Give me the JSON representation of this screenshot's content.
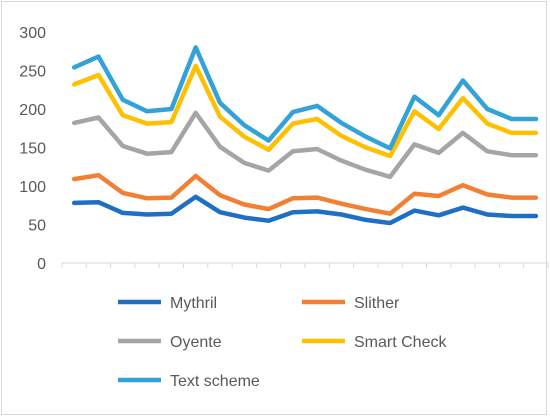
{
  "chart_data": {
    "type": "line",
    "title": "",
    "xlabel": "",
    "ylabel": "",
    "ylim": [
      0,
      300
    ],
    "yticks": [
      0,
      50,
      100,
      150,
      200,
      250,
      300
    ],
    "grid": false,
    "legend_position": "bottom",
    "x": [
      1,
      2,
      3,
      4,
      5,
      6,
      7,
      8,
      9,
      10,
      11,
      12,
      13,
      14,
      15,
      16,
      17,
      18,
      19,
      20
    ],
    "series": [
      {
        "name": "Mythril",
        "color": "#1f6fc5",
        "values": [
          78,
          79,
          65,
          63,
          64,
          86,
          66,
          59,
          55,
          66,
          67,
          63,
          56,
          52,
          68,
          62,
          72,
          63,
          61,
          61
        ]
      },
      {
        "name": "Slither",
        "color": "#f28034",
        "values": [
          109,
          114,
          91,
          84,
          85,
          113,
          88,
          76,
          70,
          84,
          85,
          77,
          70,
          64,
          90,
          87,
          101,
          89,
          85,
          85
        ]
      },
      {
        "name": "Oyente",
        "color": "#a5a5a5",
        "values": [
          182,
          189,
          152,
          142,
          144,
          195,
          151,
          130,
          120,
          145,
          148,
          133,
          121,
          112,
          154,
          143,
          169,
          145,
          140,
          140
        ]
      },
      {
        "name": "Smart Check",
        "color": "#ffc000",
        "values": [
          232,
          244,
          192,
          181,
          183,
          256,
          190,
          164,
          147,
          181,
          187,
          165,
          150,
          139,
          197,
          174,
          214,
          181,
          169,
          169
        ]
      },
      {
        "name": "Text scheme",
        "color": "#33a2d9",
        "values": [
          254,
          268,
          212,
          197,
          200,
          280,
          208,
          179,
          159,
          196,
          204,
          182,
          164,
          149,
          216,
          192,
          237,
          200,
          187,
          187
        ]
      }
    ]
  }
}
